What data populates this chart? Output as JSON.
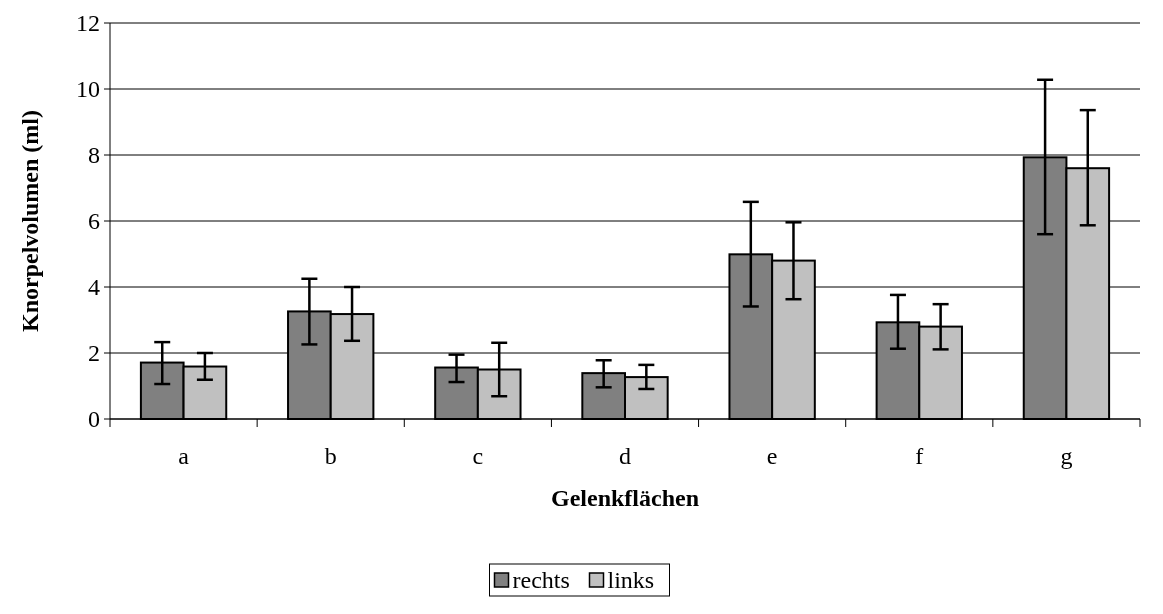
{
  "chart_data": {
    "type": "bar",
    "xlabel": "Gelenkflächen",
    "ylabel": "Knorpelvolumen (ml)",
    "categories": [
      "a",
      "b",
      "c",
      "d",
      "e",
      "f",
      "g"
    ],
    "series": [
      {
        "name": "rechts",
        "color": "#808080",
        "values": [
          1.71,
          3.26,
          1.56,
          1.39,
          4.99,
          2.93,
          7.93
        ],
        "errors": [
          [
            1.06,
            2.33
          ],
          [
            2.26,
            4.25
          ],
          [
            1.12,
            1.95
          ],
          [
            0.96,
            1.78
          ],
          [
            3.41,
            6.58
          ],
          [
            2.13,
            3.76
          ],
          [
            5.6,
            10.28
          ]
        ]
      },
      {
        "name": "links",
        "color": "#c0c0c0",
        "values": [
          1.59,
          3.18,
          1.5,
          1.27,
          4.8,
          2.8,
          7.6
        ],
        "errors": [
          [
            1.19,
            2.0
          ],
          [
            2.37,
            4.0
          ],
          [
            0.69,
            2.31
          ],
          [
            0.91,
            1.64
          ],
          [
            3.63,
            5.96
          ],
          [
            2.11,
            3.48
          ],
          [
            5.87,
            9.36
          ]
        ]
      }
    ],
    "ylim": [
      0,
      12
    ],
    "yticks": [
      0,
      2,
      4,
      6,
      8,
      10,
      12
    ],
    "grid": "y",
    "legend": "bottom"
  }
}
